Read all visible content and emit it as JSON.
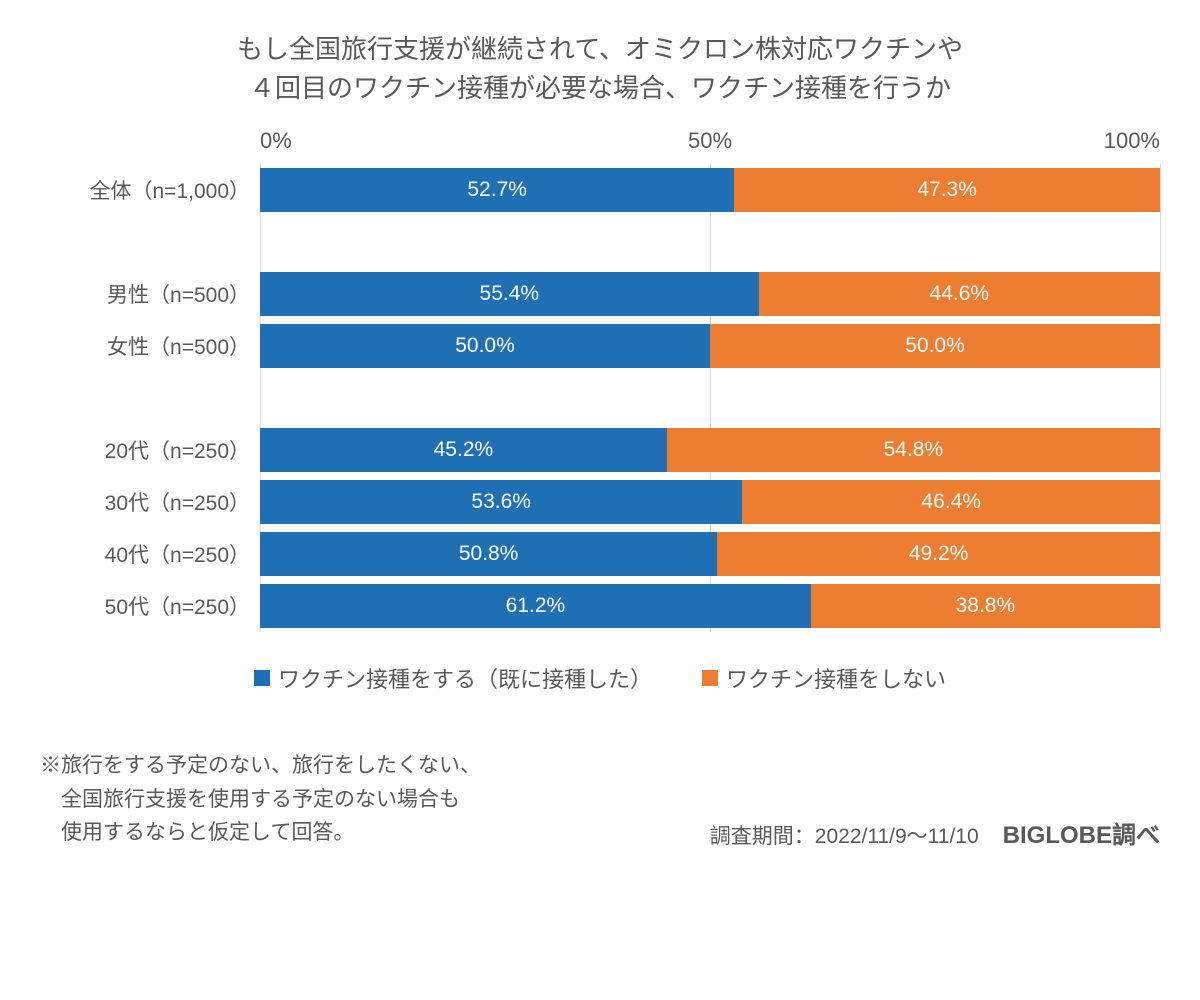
{
  "title_line1": "もし全国旅行支援が継続されて、オミクロン株対応ワクチンや",
  "title_line2": "４回目のワクチン接種が必要な場合、ワクチン接種を行うか",
  "chart": {
    "type": "stacked-bar-horizontal",
    "xlim": [
      0,
      100
    ],
    "xticks": [
      {
        "pos": 0,
        "label": "0%"
      },
      {
        "pos": 50,
        "label": "50%"
      },
      {
        "pos": 100,
        "label": "100%"
      }
    ],
    "series": [
      {
        "key": "yes",
        "label": "ワクチン接種をする（既に接種した）",
        "color": "#1f6fb4"
      },
      {
        "key": "no",
        "label": "ワクチン接種をしない",
        "color": "#ed7d31"
      }
    ],
    "groups": [
      {
        "rows": [
          {
            "label": "全体（n=1,000）",
            "values": [
              {
                "v": 52.7,
                "t": "52.7%"
              },
              {
                "v": 47.3,
                "t": "47.3%"
              }
            ]
          }
        ]
      },
      {
        "rows": [
          {
            "label": "男性（n=500）",
            "values": [
              {
                "v": 55.4,
                "t": "55.4%"
              },
              {
                "v": 44.6,
                "t": "44.6%"
              }
            ]
          },
          {
            "label": "女性（n=500）",
            "values": [
              {
                "v": 50.0,
                "t": "50.0%"
              },
              {
                "v": 50.0,
                "t": "50.0%"
              }
            ]
          }
        ]
      },
      {
        "rows": [
          {
            "label": "20代（n=250）",
            "values": [
              {
                "v": 45.2,
                "t": "45.2%"
              },
              {
                "v": 54.8,
                "t": "54.8%"
              }
            ]
          },
          {
            "label": "30代（n=250）",
            "values": [
              {
                "v": 53.6,
                "t": "53.6%"
              },
              {
                "v": 46.4,
                "t": "46.4%"
              }
            ]
          },
          {
            "label": "40代（n=250）",
            "values": [
              {
                "v": 50.8,
                "t": "50.8%"
              },
              {
                "v": 49.2,
                "t": "49.2%"
              }
            ]
          },
          {
            "label": "50代（n=250）",
            "values": [
              {
                "v": 61.2,
                "t": "61.2%"
              },
              {
                "v": 38.8,
                "t": "38.8%"
              }
            ]
          }
        ]
      }
    ],
    "grid_color": "#d9d9d9",
    "background_color": "#ffffff",
    "text_color": "#595959",
    "value_label_color": "#ffffff",
    "value_fontsize": 21,
    "label_fontsize": 21,
    "title_fontsize": 26
  },
  "note_line1": "※旅行をする予定のない、旅行をしたくない、",
  "note_line2": "　全国旅行支援を使用する予定のない場合も",
  "note_line3": "　使用するならと仮定して回答。",
  "survey_period": "調査期間：2022/11/9～11/10",
  "source": "BIGLOBE調べ"
}
